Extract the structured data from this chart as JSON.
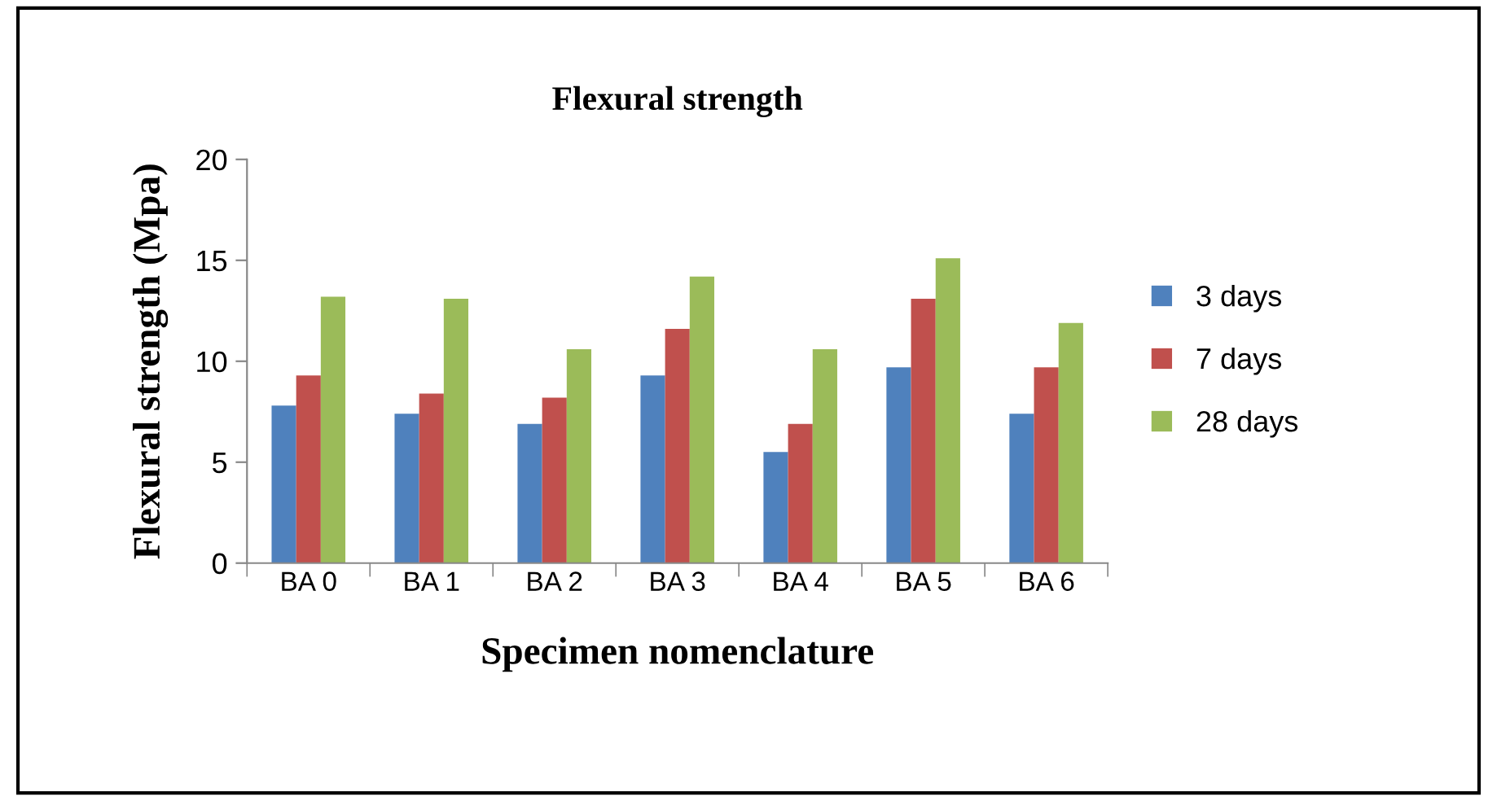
{
  "chart_data": {
    "type": "bar",
    "title": "Flexural strength",
    "xlabel": "Specimen nomenclature",
    "ylabel": "Flexural strength (Mpa)",
    "categories": [
      "BA 0",
      "BA 1",
      "BA 2",
      "BA 3",
      "BA 4",
      "BA 5",
      "BA 6"
    ],
    "series": [
      {
        "name": "3 days",
        "color": "#4f81bd",
        "values": [
          7.8,
          7.4,
          6.9,
          9.3,
          5.5,
          9.7,
          7.4
        ]
      },
      {
        "name": "7 days",
        "color": "#c0504d",
        "values": [
          9.3,
          8.4,
          8.2,
          11.6,
          6.9,
          13.1,
          9.7
        ]
      },
      {
        "name": "28 days",
        "color": "#9bbb59",
        "values": [
          13.2,
          13.1,
          10.6,
          14.2,
          10.6,
          15.1,
          11.9
        ]
      }
    ],
    "ylim": [
      0,
      20
    ],
    "yticks": [
      0,
      5,
      10,
      15,
      20
    ],
    "grid": false,
    "legend": "right"
  }
}
